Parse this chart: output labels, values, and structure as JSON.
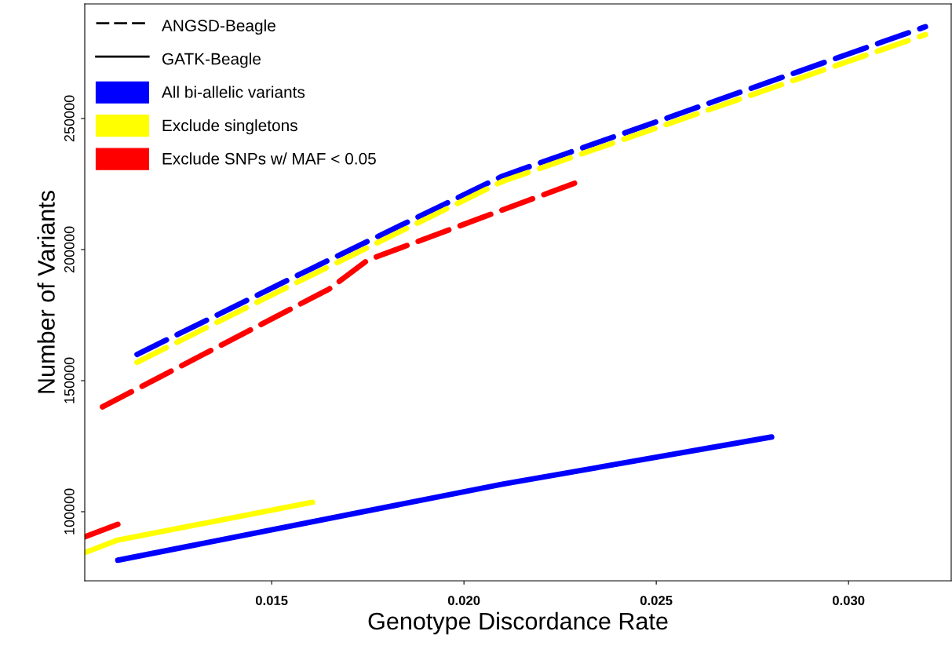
{
  "chart_data": {
    "type": "line",
    "xlabel": "Genotype Discordance Rate",
    "ylabel": "Number of Variants",
    "xlim": [
      0.01014,
      0.03267
    ],
    "ylim": [
      73650,
      293700
    ],
    "xticks": [
      0.015,
      {
        "value": 0.02,
        "label": "0.020"
      },
      {
        "value": 0.025,
        "label": "0.025"
      },
      {
        "value": 0.03,
        "label": "0.030"
      }
    ],
    "yticks": [
      100000,
      150000,
      200000,
      250000
    ],
    "grid": false,
    "legend": "top left",
    "marker": "none",
    "annotations": [
      "ANGSD-Beagle",
      "GATK-Beagle"
    ],
    "series": [
      {
        "name": "All bi-allelic variants",
        "color": "#0000ff",
        "line_style": "dashed",
        "x": [
          0.0115,
          0.016,
          0.021,
          0.032
        ],
        "values": [
          160000,
          192500,
          228000,
          285000
        ]
      },
      {
        "name": "Exclude singletons",
        "color": "#ffff00",
        "line_style": "dashed",
        "x": [
          0.0115,
          0.016,
          0.021,
          0.032
        ],
        "values": [
          157000,
          190000,
          226000,
          282000
        ]
      },
      {
        "name": "Exclude SNPs w/ MAF < 0.05",
        "color": "#ff0000",
        "line_style": "dashed",
        "x": [
          0.0106,
          0.0165,
          0.0175,
          0.023
        ],
        "values": [
          140000,
          185000,
          196000,
          226000
        ]
      },
      {
        "color": "#0000ff",
        "line_style": "solid",
        "x": [
          0.011,
          0.021,
          0.028
        ],
        "values": [
          81500,
          110500,
          128500
        ]
      },
      {
        "color": "#ffff00",
        "line_style": "solid",
        "x": [
          0.01014,
          0.011,
          0.01606
        ],
        "values": [
          84400,
          89200,
          103600
        ]
      },
      {
        "color": "#ff0000",
        "line_style": "solid",
        "x": [
          0.01014,
          0.011
        ],
        "values": [
          90400,
          95200
        ]
      }
    ]
  }
}
